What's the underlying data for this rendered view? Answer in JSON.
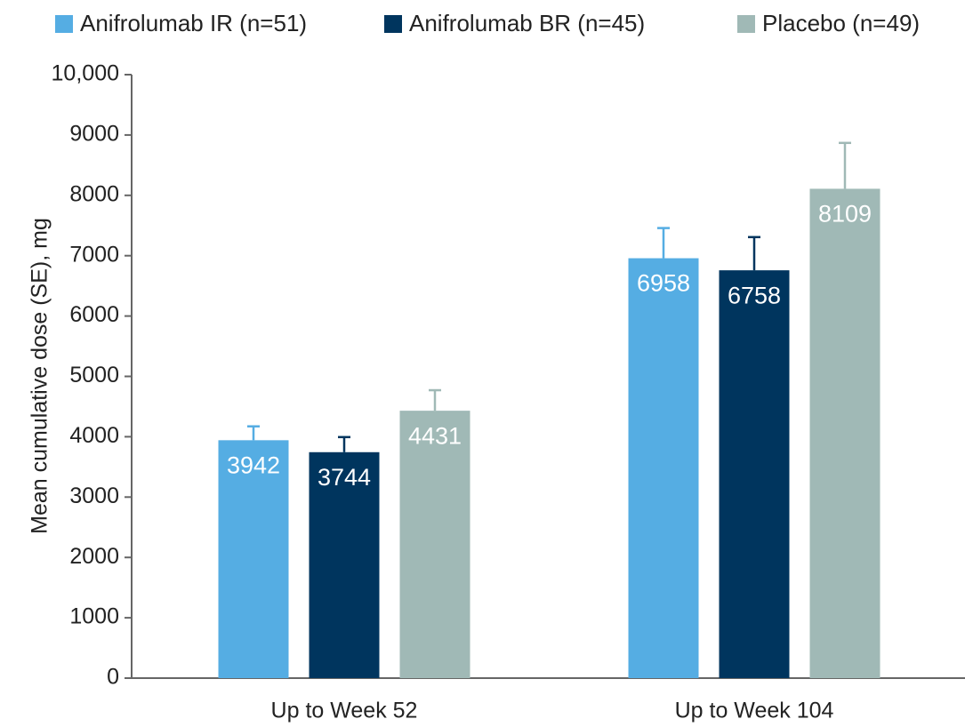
{
  "chart_data": {
    "type": "bar",
    "y_label": "Mean cumulative dose (SE), mg",
    "categories": [
      "Up to Week 52",
      "Up to Week 104"
    ],
    "series": [
      {
        "name": "Anifrolumab IR (n=51)",
        "color": "#55ade3",
        "values": [
          3942,
          6958
        ],
        "errors": [
          230,
          500
        ]
      },
      {
        "name": "Anifrolumab BR (n=45)",
        "color": "#00355e",
        "values": [
          3744,
          6758
        ],
        "errors": [
          250,
          550
        ]
      },
      {
        "name": "Placebo (n=49)",
        "color": "#a0b9b6",
        "values": [
          4431,
          8109
        ],
        "errors": [
          340,
          760
        ]
      }
    ],
    "ylim": [
      0,
      10000
    ],
    "yticks": [
      0,
      1000,
      2000,
      3000,
      4000,
      5000,
      6000,
      7000,
      8000,
      9000,
      {
        "value": 10000,
        "label": "10,000"
      }
    ],
    "grid": false,
    "legend": "top"
  }
}
